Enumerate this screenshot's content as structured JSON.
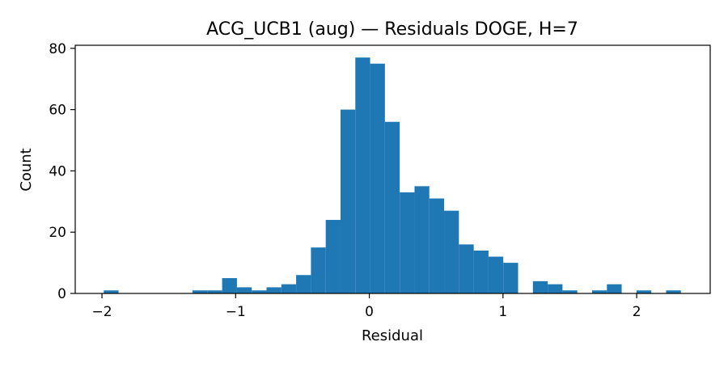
{
  "chart_data": {
    "type": "bar",
    "title": "ACG_UCB1 (aug) — Residuals DOGE, H=7",
    "xlabel": "Residual",
    "ylabel": "Count",
    "xlim": [
      -2.2,
      2.55
    ],
    "ylim": [
      0,
      81
    ],
    "grid": false,
    "bar_color": "#1f77b4",
    "bin_width": 0.1107,
    "x_ticks": [
      {
        "value": -2,
        "label": "−2"
      },
      {
        "value": -1,
        "label": "−1"
      },
      {
        "value": 0,
        "label": "0"
      },
      {
        "value": 1,
        "label": "1"
      },
      {
        "value": 2,
        "label": "2"
      }
    ],
    "y_ticks": [
      {
        "value": 0,
        "label": "0"
      },
      {
        "value": 20,
        "label": "20"
      },
      {
        "value": 40,
        "label": "40"
      },
      {
        "value": 60,
        "label": "60"
      },
      {
        "value": 80,
        "label": "80"
      }
    ],
    "bin_starts": [
      -1.9866,
      -1.8759,
      -1.7652,
      -1.6545,
      -1.5438,
      -1.4331,
      -1.3224,
      -1.2117,
      -1.101,
      -0.9903,
      -0.8796,
      -0.7689,
      -0.6582,
      -0.5475,
      -0.4368,
      -0.3261,
      -0.2154,
      -0.1047,
      0.006,
      0.1167,
      0.2274,
      0.3381,
      0.4488,
      0.5595,
      0.6702,
      0.7809,
      0.8916,
      1.0023,
      1.113,
      1.2237,
      1.3344,
      1.4451,
      1.5558,
      1.6665,
      1.7772,
      1.8879,
      1.9986,
      2.1093,
      2.22
    ],
    "counts": [
      1,
      0,
      0,
      0,
      0,
      0,
      1,
      1,
      5,
      2,
      1,
      2,
      3,
      6,
      15,
      24,
      60,
      77,
      75,
      56,
      33,
      35,
      31,
      27,
      16,
      14,
      12,
      10,
      0,
      4,
      3,
      1,
      0,
      1,
      3,
      0,
      1,
      0,
      1
    ]
  }
}
